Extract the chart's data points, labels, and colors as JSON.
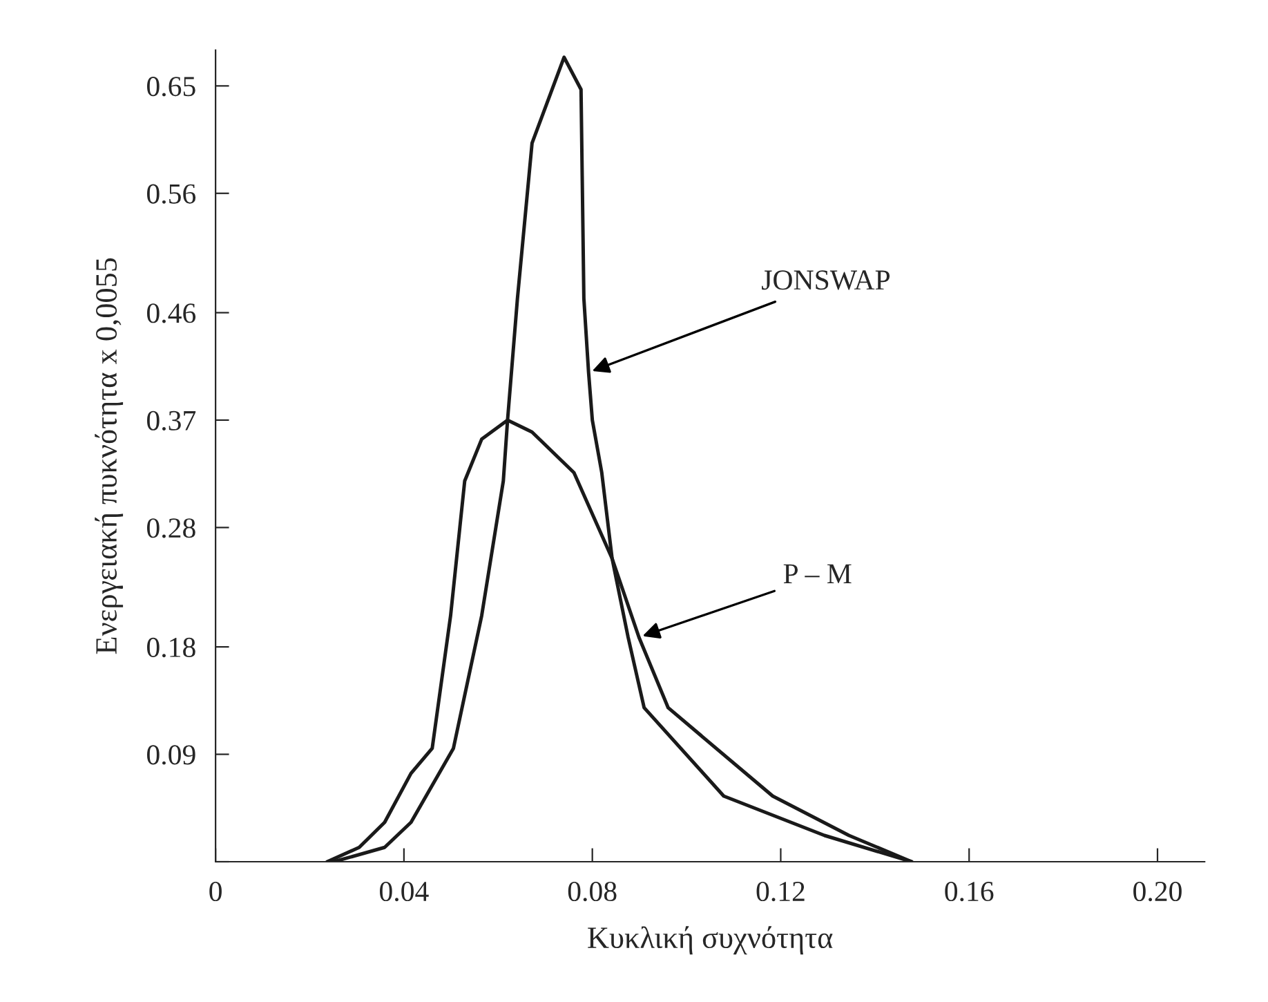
{
  "chart_data": {
    "type": "line",
    "xlabel": "Κυκλική συχνότητα",
    "ylabel": "Ενεργειακή πυκνότητα x 0,0055",
    "series": [
      {
        "color": "#1a1a1a",
        "x": [
          0.0237,
          0.0305,
          0.0359,
          0.0415,
          0.046,
          0.0499,
          0.0529,
          0.0565,
          0.062,
          0.0672,
          0.0761,
          0.0842,
          0.0899,
          0.0961,
          0.1183,
          0.1345,
          0.1478
        ],
        "values": [
          0,
          0.012,
          0.033,
          0.074,
          0.095,
          0.206,
          0.319,
          0.354,
          0.37,
          0.36,
          0.326,
          0.254,
          0.188,
          0.129,
          0.055,
          0.022,
          0
        ]
      },
      {
        "color": "#1a1a1a",
        "x": [
          0.0251,
          0.0359,
          0.0415,
          0.0505,
          0.0565,
          0.0611,
          0.062,
          0.0641,
          0.0672,
          0.074,
          0.0776,
          0.0782,
          0.0792,
          0.08,
          0.082,
          0.0842,
          0.0876,
          0.091,
          0.1079,
          0.1293,
          0.1478
        ],
        "values": [
          0,
          0.012,
          0.033,
          0.095,
          0.206,
          0.319,
          0.37,
          0.472,
          0.602,
          0.674,
          0.647,
          0.472,
          0.41,
          0.37,
          0.326,
          0.254,
          0.188,
          0.129,
          0.055,
          0.022,
          0
        ]
      }
    ],
    "annotations": [
      {
        "text": "JONSWAP",
        "x": 0.0792,
        "y": 0.41
      },
      {
        "text": "P – M",
        "x": 0.0899,
        "y": 0.188
      }
    ],
    "xlim": [
      0,
      0.21
    ],
    "xticks": [
      0,
      0.04,
      0.08,
      0.12,
      0.16,
      {
        "value": 0.2,
        "label": "0.20"
      }
    ],
    "ylim": [
      0,
      0.68
    ],
    "yticks": [
      {
        "value": 0,
        "label": null
      },
      0.09,
      0.18,
      0.28,
      0.37,
      0.46,
      0.56,
      0.65
    ],
    "grid": false,
    "legend": false,
    "marker": "none",
    "line_style": "solid"
  }
}
